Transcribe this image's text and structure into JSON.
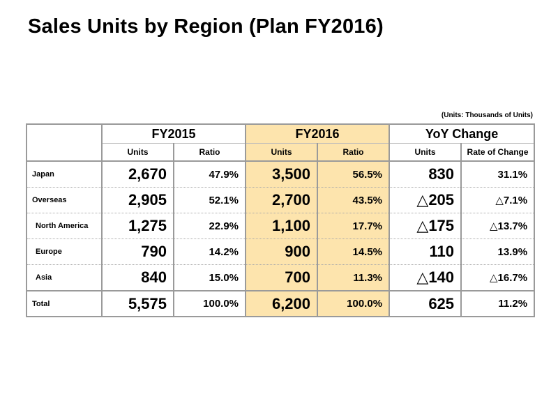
{
  "title": "Sales Units by Region (Plan FY2016)",
  "units_note": "(Units: Thousands of Units)",
  "highlight_color": "#fde4ad",
  "headers": {
    "fy2015": "FY2015",
    "fy2016": "FY2016",
    "yoy": "YoY Change",
    "units": "Units",
    "ratio": "Ratio",
    "rate_of_change": "Rate of Change"
  },
  "rows": [
    {
      "label": "Japan",
      "fy2015_units": "2,670",
      "fy2015_ratio": "47.9%",
      "fy2016_units": "3,500",
      "fy2016_ratio": "56.5%",
      "yoy_units": "830",
      "yoy_rate": "31.1%"
    },
    {
      "label": "Overseas",
      "fy2015_units": "2,905",
      "fy2015_ratio": "52.1%",
      "fy2016_units": "2,700",
      "fy2016_ratio": "43.5%",
      "yoy_units": "△205",
      "yoy_rate": "△7.1%"
    },
    {
      "label": "North America",
      "fy2015_units": "1,275",
      "fy2015_ratio": "22.9%",
      "fy2016_units": "1,100",
      "fy2016_ratio": "17.7%",
      "yoy_units": "△175",
      "yoy_rate": "△13.7%"
    },
    {
      "label": "Europe",
      "fy2015_units": "790",
      "fy2015_ratio": "14.2%",
      "fy2016_units": "900",
      "fy2016_ratio": "14.5%",
      "yoy_units": "110",
      "yoy_rate": "13.9%"
    },
    {
      "label": "Asia",
      "fy2015_units": "840",
      "fy2015_ratio": "15.0%",
      "fy2016_units": "700",
      "fy2016_ratio": "11.3%",
      "yoy_units": "△140",
      "yoy_rate": "△16.7%"
    },
    {
      "label": "Total",
      "fy2015_units": "5,575",
      "fy2015_ratio": "100.0%",
      "fy2016_units": "6,200",
      "fy2016_ratio": "100.0%",
      "yoy_units": "625",
      "yoy_rate": "11.2%"
    }
  ]
}
